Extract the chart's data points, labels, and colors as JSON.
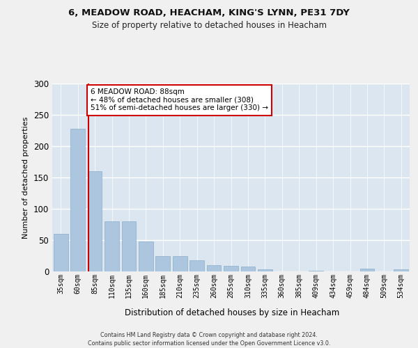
{
  "title": "6, MEADOW ROAD, HEACHAM, KING'S LYNN, PE31 7DY",
  "subtitle": "Size of property relative to detached houses in Heacham",
  "xlabel": "Distribution of detached houses by size in Heacham",
  "ylabel": "Number of detached properties",
  "bar_color": "#adc6e0",
  "bar_edge_color": "#8aaec8",
  "background_color": "#dce6f0",
  "grid_color": "#ffffff",
  "annotation_line_color": "#cc0000",
  "annotation_box_color": "#cc0000",
  "annotation_text": "6 MEADOW ROAD: 88sqm\n← 48% of detached houses are smaller (308)\n51% of semi-detached houses are larger (330) →",
  "footer_line1": "Contains HM Land Registry data © Crown copyright and database right 2024.",
  "footer_line2": "Contains public sector information licensed under the Open Government Licence v3.0.",
  "categories": [
    "35sqm",
    "60sqm",
    "85sqm",
    "110sqm",
    "135sqm",
    "160sqm",
    "185sqm",
    "210sqm",
    "235sqm",
    "260sqm",
    "285sqm",
    "310sqm",
    "335sqm",
    "360sqm",
    "385sqm",
    "409sqm",
    "434sqm",
    "459sqm",
    "484sqm",
    "509sqm",
    "534sqm"
  ],
  "values": [
    60,
    228,
    160,
    80,
    80,
    48,
    25,
    25,
    18,
    10,
    9,
    8,
    3,
    0,
    0,
    1,
    0,
    0,
    4,
    0,
    3
  ],
  "ylim": [
    0,
    300
  ],
  "yticks": [
    0,
    50,
    100,
    150,
    200,
    250,
    300
  ],
  "fig_bg_color": "#f0f0f0"
}
